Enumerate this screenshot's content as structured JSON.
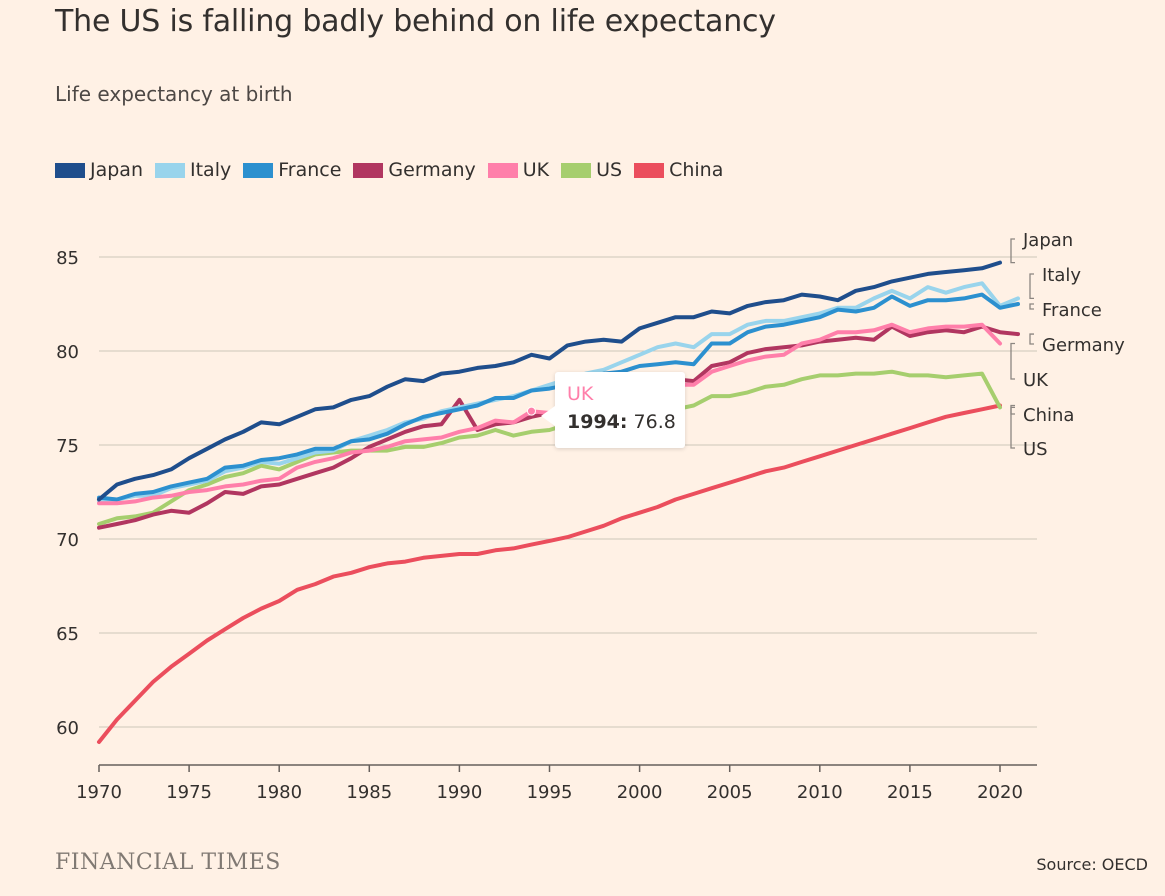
{
  "title": "The US is falling badly behind on life expectancy",
  "subtitle": "Life expectancy at birth",
  "branding": "FINANCIAL TIMES",
  "source": "Source: OECD",
  "tooltip": {
    "series": "UK",
    "year": "1994",
    "year_suffix": ":",
    "value": "76.8"
  },
  "chart_data": {
    "type": "line",
    "title": "The US is falling badly behind on life expectancy",
    "subtitle": "Life expectancy at birth",
    "xlabel": "",
    "ylabel": "",
    "xlim": [
      1970,
      2022
    ],
    "ylim": [
      58.5,
      86.5
    ],
    "x_ticks": [
      1970,
      1975,
      1980,
      1985,
      1990,
      1995,
      2000,
      2005,
      2010,
      2015,
      2020
    ],
    "y_ticks": [
      60,
      65,
      70,
      75,
      80,
      85
    ],
    "grid": "horizontal",
    "legend": "top-left",
    "series": [
      {
        "name": "Japan",
        "color": "#1F4E8C",
        "start": 1970,
        "values": [
          72.1,
          72.9,
          73.2,
          73.4,
          73.7,
          74.3,
          74.8,
          75.3,
          75.7,
          76.2,
          76.1,
          76.5,
          76.9,
          77.0,
          77.4,
          77.6,
          78.1,
          78.5,
          78.4,
          78.8,
          78.9,
          79.1,
          79.2,
          79.4,
          79.8,
          79.6,
          80.3,
          80.5,
          80.6,
          80.5,
          81.2,
          81.5,
          81.8,
          81.8,
          82.1,
          82.0,
          82.4,
          82.6,
          82.7,
          83.0,
          82.9,
          82.7,
          83.2,
          83.4,
          83.7,
          83.9,
          84.1,
          84.2,
          84.3,
          84.4,
          84.7
        ]
      },
      {
        "name": "Italy",
        "color": "#99D4EC",
        "start": 1970,
        "values": [
          72.0,
          72.1,
          72.3,
          72.3,
          72.7,
          72.9,
          73.1,
          73.6,
          73.8,
          74.1,
          74.0,
          74.3,
          74.6,
          74.7,
          75.2,
          75.5,
          75.8,
          76.2,
          76.4,
          76.8,
          77.0,
          77.2,
          77.4,
          77.6,
          77.9,
          78.2,
          78.5,
          78.8,
          79.0,
          79.4,
          79.8,
          80.2,
          80.4,
          80.2,
          80.9,
          80.9,
          81.4,
          81.6,
          81.6,
          81.8,
          82.0,
          82.3,
          82.3,
          82.8,
          83.2,
          82.8,
          83.4,
          83.1,
          83.4,
          83.6,
          82.4,
          82.8
        ]
      },
      {
        "name": "France",
        "color": "#2C90CF",
        "start": 1970,
        "values": [
          72.2,
          72.1,
          72.4,
          72.5,
          72.8,
          73.0,
          73.2,
          73.8,
          73.9,
          74.2,
          74.3,
          74.5,
          74.8,
          74.8,
          75.2,
          75.3,
          75.6,
          76.1,
          76.5,
          76.7,
          76.9,
          77.1,
          77.5,
          77.5,
          77.9,
          78.0,
          78.2,
          78.5,
          78.8,
          78.9,
          79.2,
          79.3,
          79.4,
          79.3,
          80.4,
          80.4,
          81.0,
          81.3,
          81.4,
          81.6,
          81.8,
          82.2,
          82.1,
          82.3,
          82.9,
          82.4,
          82.7,
          82.7,
          82.8,
          83.0,
          82.3,
          82.5
        ]
      },
      {
        "name": "Germany",
        "color": "#B13660",
        "start": 1970,
        "values": [
          70.6,
          70.8,
          71.0,
          71.3,
          71.5,
          71.4,
          71.9,
          72.5,
          72.4,
          72.8,
          72.9,
          73.2,
          73.5,
          73.8,
          74.3,
          74.9,
          75.3,
          75.7,
          76.0,
          76.1,
          77.4,
          75.8,
          76.1,
          76.2,
          76.5,
          76.7,
          76.9,
          77.3,
          77.6,
          77.9,
          78.3,
          78.5,
          78.5,
          78.4,
          79.2,
          79.4,
          79.9,
          80.1,
          80.2,
          80.3,
          80.5,
          80.6,
          80.7,
          80.6,
          81.3,
          80.8,
          81.0,
          81.1,
          81.0,
          81.3,
          81.0,
          80.9
        ]
      },
      {
        "name": "UK",
        "color": "#FF7FAA",
        "start": 1970,
        "values": [
          71.9,
          71.9,
          72.0,
          72.2,
          72.3,
          72.5,
          72.6,
          72.8,
          72.9,
          73.1,
          73.2,
          73.8,
          74.1,
          74.3,
          74.6,
          74.7,
          74.9,
          75.2,
          75.3,
          75.4,
          75.7,
          75.9,
          76.3,
          76.2,
          76.8,
          76.7,
          77.0,
          77.2,
          77.3,
          77.5,
          77.9,
          78.1,
          78.2,
          78.2,
          78.9,
          79.2,
          79.5,
          79.7,
          79.8,
          80.4,
          80.6,
          81.0,
          81.0,
          81.1,
          81.4,
          81.0,
          81.2,
          81.3,
          81.3,
          81.4,
          80.4
        ]
      },
      {
        "name": "US",
        "color": "#A6CE6E",
        "start": 1970,
        "values": [
          70.8,
          71.1,
          71.2,
          71.4,
          72.0,
          72.6,
          72.9,
          73.3,
          73.5,
          73.9,
          73.7,
          74.1,
          74.5,
          74.6,
          74.7,
          74.7,
          74.7,
          74.9,
          74.9,
          75.1,
          75.4,
          75.5,
          75.8,
          75.5,
          75.7,
          75.8,
          76.1,
          76.5,
          76.7,
          76.7,
          76.8,
          76.9,
          76.9,
          77.1,
          77.6,
          77.6,
          77.8,
          78.1,
          78.2,
          78.5,
          78.7,
          78.7,
          78.8,
          78.8,
          78.9,
          78.7,
          78.7,
          78.6,
          78.7,
          78.8,
          77.0
        ]
      },
      {
        "name": "China",
        "color": "#EB4E5D",
        "start": 1970,
        "values": [
          59.2,
          60.4,
          61.4,
          62.4,
          63.2,
          63.9,
          64.6,
          65.2,
          65.8,
          66.3,
          66.7,
          67.3,
          67.6,
          68.0,
          68.2,
          68.5,
          68.7,
          68.8,
          69.0,
          69.1,
          69.2,
          69.2,
          69.4,
          69.5,
          69.7,
          69.9,
          70.1,
          70.4,
          70.7,
          71.1,
          71.4,
          71.7,
          72.1,
          72.4,
          72.7,
          73.0,
          73.3,
          73.6,
          73.8,
          74.1,
          74.4,
          74.7,
          75.0,
          75.3,
          75.6,
          75.9,
          76.2,
          76.5,
          76.7,
          76.9,
          77.1
        ]
      }
    ],
    "end_labels": [
      "Japan",
      "Italy",
      "France",
      "Germany",
      "UK",
      "China",
      "US"
    ]
  }
}
